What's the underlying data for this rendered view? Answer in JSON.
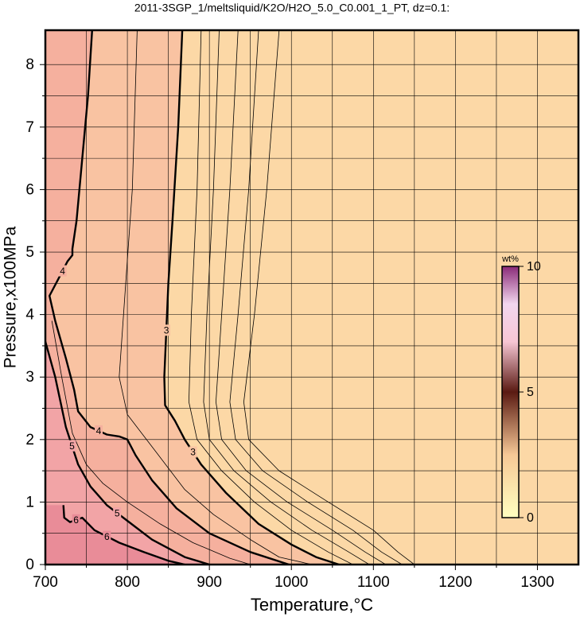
{
  "chart_data": {
    "type": "contour",
    "title": "2011-3SGP_1/meltsliquid/K2O/H2O_5.0_C0.001_1_PT, dz=0.1:",
    "xlabel": "Temperature,°C",
    "ylabel": "Pressure,x100MPa",
    "xlim": [
      700,
      1350
    ],
    "ylim": [
      0,
      8.55
    ],
    "xticks": [
      700,
      800,
      900,
      1000,
      1100,
      1200,
      1300
    ],
    "yticks": [
      0,
      1,
      2,
      3,
      4,
      5,
      6,
      7,
      8
    ],
    "xminor": [
      750,
      850,
      950,
      1050,
      1150,
      1250
    ],
    "yminor": [
      0.5,
      1.5,
      2.5,
      3.5,
      4.5,
      5.5,
      6.5,
      7.5
    ],
    "grid": true,
    "background": "#fcd8a6",
    "contours": [
      {
        "level": 2.0,
        "x": [
          985,
          970,
          955,
          942,
          948,
          985,
          1045,
          1100,
          1130,
          1150
        ],
        "y": [
          8.55,
          6,
          4,
          2.6,
          2.0,
          1.5,
          1.0,
          0.55,
          0.2,
          0
        ]
      },
      {
        "level": 2.2,
        "x": [
          960,
          948,
          935,
          925,
          932,
          965,
          1020,
          1075,
          1110,
          1135
        ],
        "y": [
          8.55,
          6,
          4,
          2.6,
          2.0,
          1.5,
          1.0,
          0.55,
          0.2,
          0
        ]
      },
      {
        "level": 2.4,
        "x": [
          935,
          925,
          915,
          908,
          915,
          945,
          995,
          1050,
          1090,
          1115
        ],
        "y": [
          8.55,
          6,
          4,
          2.6,
          2.0,
          1.5,
          1.0,
          0.55,
          0.2,
          0
        ]
      },
      {
        "level": 2.6,
        "x": [
          912,
          905,
          897,
          893,
          900,
          930,
          975,
          1025,
          1070,
          1095
        ],
        "y": [
          8.55,
          6,
          4,
          2.6,
          2.0,
          1.5,
          1.0,
          0.55,
          0.2,
          0
        ]
      },
      {
        "level": 2.8,
        "x": [
          890,
          885,
          878,
          875,
          885,
          915,
          955,
          1000,
          1045,
          1075
        ],
        "y": [
          8.55,
          6,
          4,
          2.6,
          2.0,
          1.5,
          1.0,
          0.55,
          0.2,
          0
        ]
      },
      {
        "level": 3,
        "labeled": true,
        "fill": "#f9c3a2",
        "x": [
          867,
          862,
          855,
          850,
          845,
          846,
          858,
          870,
          890,
          920,
          960,
          1000,
          1030,
          1058
        ],
        "y": [
          8.55,
          7,
          5.5,
          4.5,
          3,
          2.55,
          2.3,
          2.0,
          1.6,
          1.15,
          0.65,
          0.32,
          0.12,
          0
        ]
      },
      {
        "level": 3.5,
        "x": [
          812,
          806,
          798,
          790,
          800,
          835,
          870,
          905,
          950,
          985,
          1025
        ],
        "y": [
          8.55,
          6,
          4.5,
          3,
          2.4,
          1.8,
          1.2,
          0.8,
          0.4,
          0.12,
          0
        ]
      },
      {
        "level": 4,
        "labeled": true,
        "fill": "#f5b09e",
        "x": [
          757,
          752,
          745,
          738,
          733,
          733,
          727,
          715,
          705,
          712,
          725,
          735,
          740,
          755,
          775,
          790,
          800,
          810,
          830,
          860,
          900,
          950,
          997
        ],
        "y": [
          8.55,
          7.5,
          6.5,
          5.5,
          5.05,
          4.95,
          4.85,
          4.55,
          4.3,
          3.9,
          3.3,
          2.8,
          2.45,
          2.2,
          2.08,
          2.05,
          2.0,
          1.75,
          1.35,
          0.9,
          0.5,
          0.2,
          0
        ]
      },
      {
        "level": 4.5,
        "x": [
          708,
          720,
          733,
          750,
          770,
          800,
          840,
          880,
          925,
          950
        ],
        "y": [
          3.9,
          3.0,
          2.1,
          1.6,
          1.3,
          1.0,
          0.65,
          0.35,
          0.1,
          0
        ]
      },
      {
        "level": 5,
        "labeled": true,
        "fill": "#f2a4a6",
        "x": [
          700,
          712,
          725,
          740,
          755,
          775,
          800,
          830,
          870,
          900
        ],
        "y": [
          3.57,
          3.0,
          2.2,
          1.6,
          1.25,
          0.95,
          0.7,
          0.4,
          0.12,
          0
        ]
      },
      {
        "level": 6,
        "labeled": true,
        "fill": "#e98c98",
        "x": [
          722,
          723,
          730,
          745,
          760,
          790,
          820,
          850,
          870
        ],
        "y": [
          0.95,
          0.75,
          0.68,
          0.75,
          0.55,
          0.35,
          0.2,
          0.06,
          0
        ]
      }
    ],
    "colorbar": {
      "label": "wt%",
      "lim": [
        0,
        10
      ],
      "ticks": [
        0,
        5,
        10
      ],
      "stops": [
        {
          "value": 0,
          "color": "#ffffc0"
        },
        {
          "value": 2.5,
          "color": "#f6c896"
        },
        {
          "value": 5,
          "color": "#5a1a12"
        },
        {
          "value": 7,
          "color": "#f7c6d4"
        },
        {
          "value": 8.5,
          "color": "#f2d6ee"
        },
        {
          "value": 10,
          "color": "#8a2a78"
        }
      ]
    }
  }
}
